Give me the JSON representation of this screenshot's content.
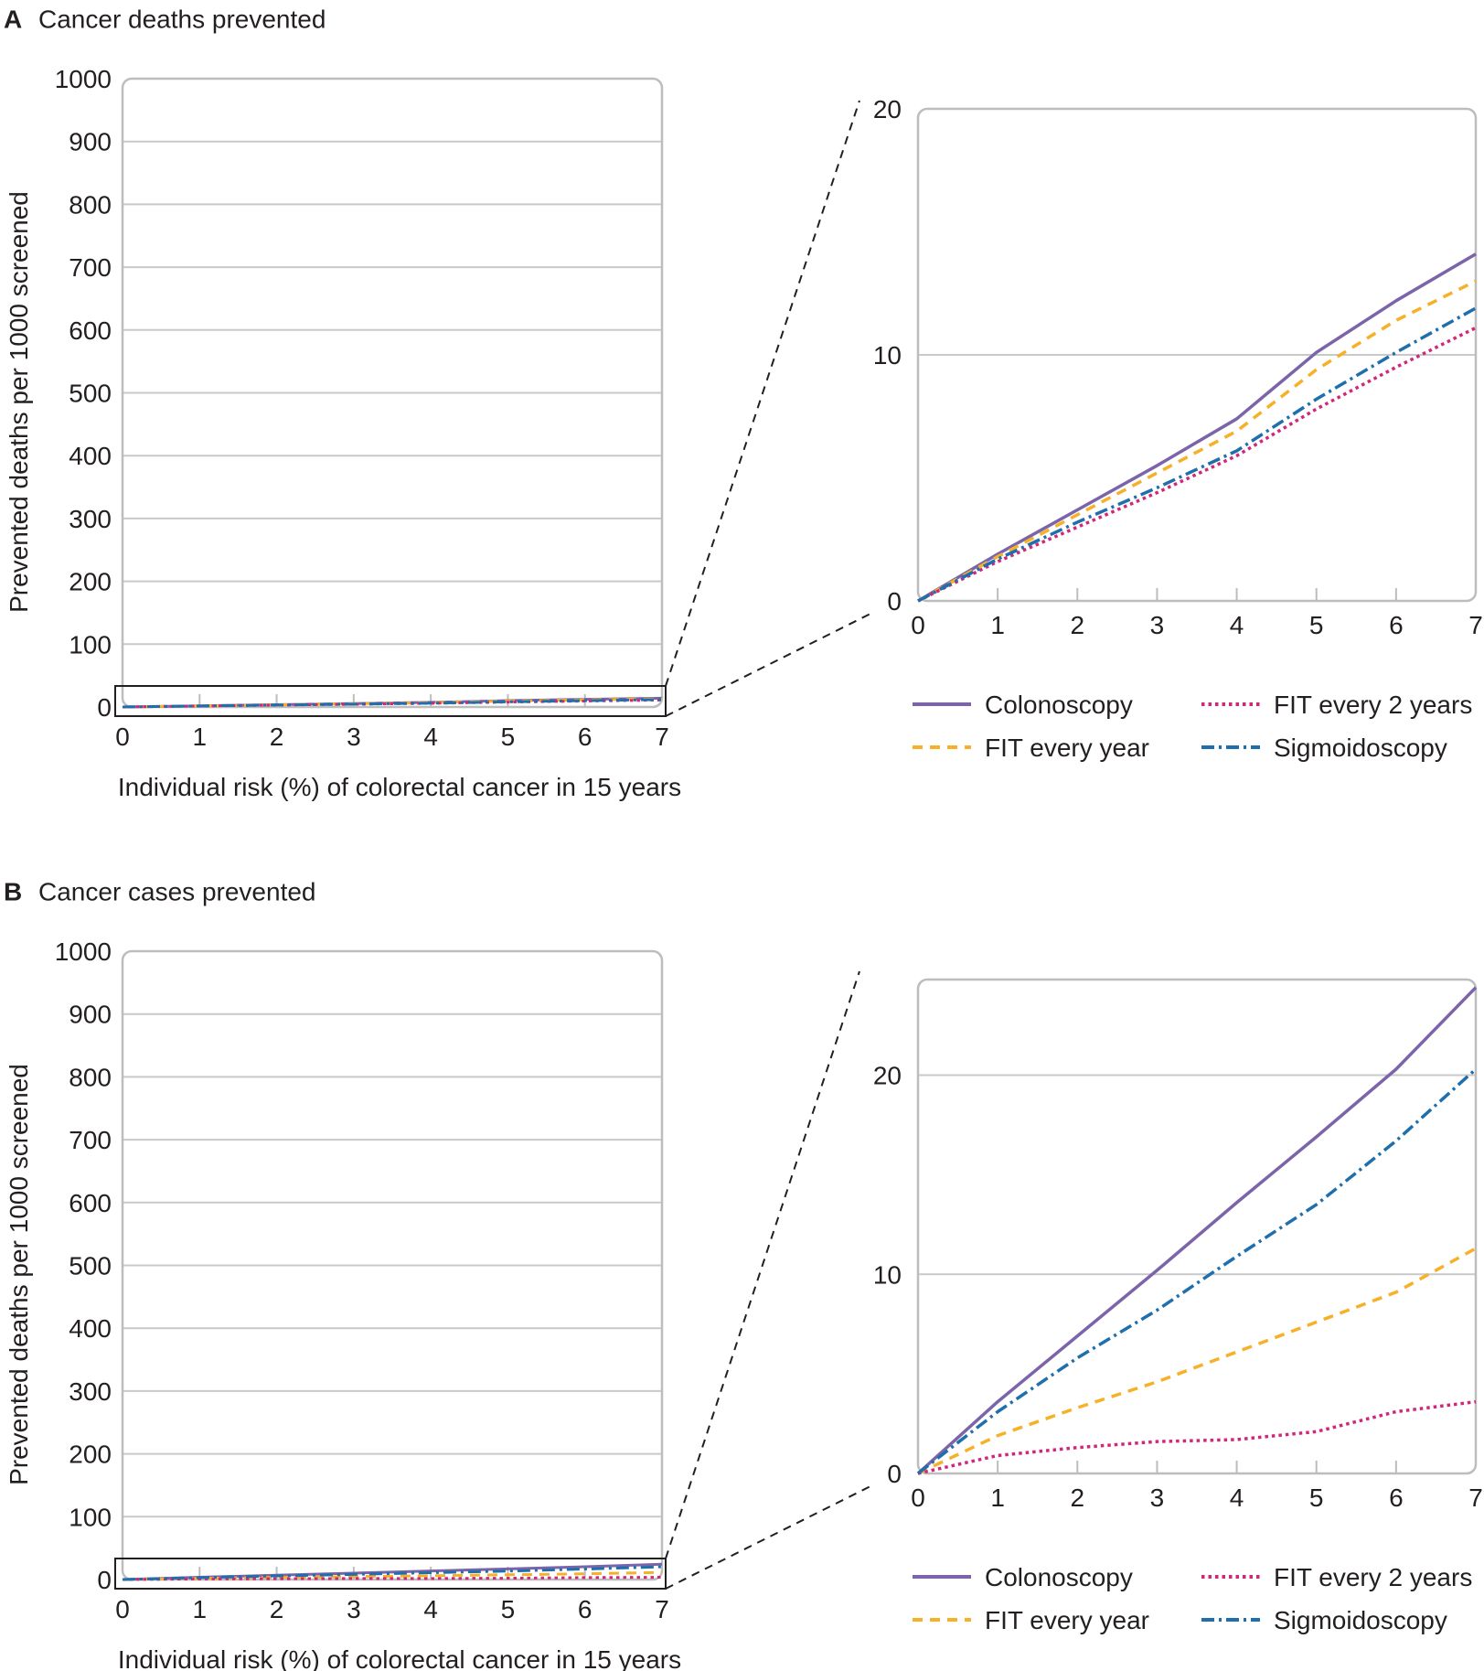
{
  "chart_data": [
    {
      "panel_letter": "A",
      "panel_title": "Cancer deaths prevented",
      "type": "line",
      "full": {
        "ylabel": "Prevented deaths per 1000 screened",
        "xlabel": "Individual risk (%) of colorectal cancer in 15 years",
        "ylim": [
          0,
          1000
        ],
        "yticks": [
          "0",
          "100",
          "200",
          "300",
          "400",
          "500",
          "600",
          "700",
          "800",
          "900",
          "1000"
        ],
        "xlim": [
          0,
          7
        ],
        "xticks": [
          "0",
          "1",
          "2",
          "3",
          "4",
          "5",
          "6",
          "7"
        ]
      },
      "zoom": {
        "ylim": [
          0,
          20
        ],
        "yticks": [
          "0",
          "10",
          "20"
        ],
        "xlim": [
          0,
          7
        ],
        "xticks": [
          "0",
          "1",
          "2",
          "3",
          "4",
          "5",
          "6",
          "7"
        ]
      },
      "x": [
        0,
        1,
        2,
        3,
        4,
        5,
        6,
        7
      ],
      "series": [
        {
          "name": "Colonoscopy",
          "color": "#7b64aa",
          "dash": "solid",
          "values": [
            0,
            1.9,
            3.7,
            5.5,
            7.4,
            10.1,
            12.2,
            14.1
          ]
        },
        {
          "name": "FIT every year",
          "color": "#f6b128",
          "dash": "dash",
          "values": [
            0,
            1.8,
            3.5,
            5.2,
            6.9,
            9.4,
            11.4,
            13.0
          ]
        },
        {
          "name": "FIT every 2 years",
          "color": "#d1277b",
          "dash": "dot",
          "values": [
            0,
            1.6,
            3.0,
            4.4,
            5.9,
            7.8,
            9.5,
            11.1
          ]
        },
        {
          "name": "Sigmoidoscopy",
          "color": "#1f6fad",
          "dash": "dashdot",
          "values": [
            0,
            1.7,
            3.2,
            4.6,
            6.1,
            8.2,
            10.1,
            11.9
          ]
        }
      ]
    },
    {
      "panel_letter": "B",
      "panel_title": "Cancer cases prevented",
      "type": "line",
      "full": {
        "ylabel": "Prevented deaths per 1000 screened",
        "xlabel": "Individual risk (%) of colorectal cancer in 15 years",
        "ylim": [
          0,
          1000
        ],
        "yticks": [
          "0",
          "100",
          "200",
          "300",
          "400",
          "500",
          "600",
          "700",
          "800",
          "900",
          "1000"
        ],
        "xlim": [
          0,
          7
        ],
        "xticks": [
          "0",
          "1",
          "2",
          "3",
          "4",
          "5",
          "6",
          "7"
        ]
      },
      "zoom": {
        "ylim": [
          0,
          24.8
        ],
        "yticks": [
          "0",
          "10",
          "20"
        ],
        "xlim": [
          0,
          7
        ],
        "xticks": [
          "0",
          "1",
          "2",
          "3",
          "4",
          "5",
          "6",
          "7"
        ]
      },
      "x": [
        0,
        1,
        2,
        3,
        4,
        5,
        6,
        7
      ],
      "series": [
        {
          "name": "Colonoscopy",
          "color": "#7b64aa",
          "dash": "solid",
          "values": [
            0,
            3.6,
            6.9,
            10.2,
            13.6,
            16.9,
            20.3,
            24.4
          ]
        },
        {
          "name": "FIT every year",
          "color": "#f6b128",
          "dash": "dash",
          "values": [
            0,
            1.9,
            3.3,
            4.6,
            6.1,
            7.6,
            9.1,
            11.3
          ]
        },
        {
          "name": "FIT every 2 years",
          "color": "#d1277b",
          "dash": "dot",
          "values": [
            0,
            0.9,
            1.3,
            1.6,
            1.7,
            2.1,
            3.1,
            3.6
          ]
        },
        {
          "name": "Sigmoidoscopy",
          "color": "#1f6fad",
          "dash": "dashdot",
          "values": [
            0,
            3.1,
            5.8,
            8.2,
            10.9,
            13.5,
            16.7,
            20.3
          ]
        }
      ]
    }
  ]
}
